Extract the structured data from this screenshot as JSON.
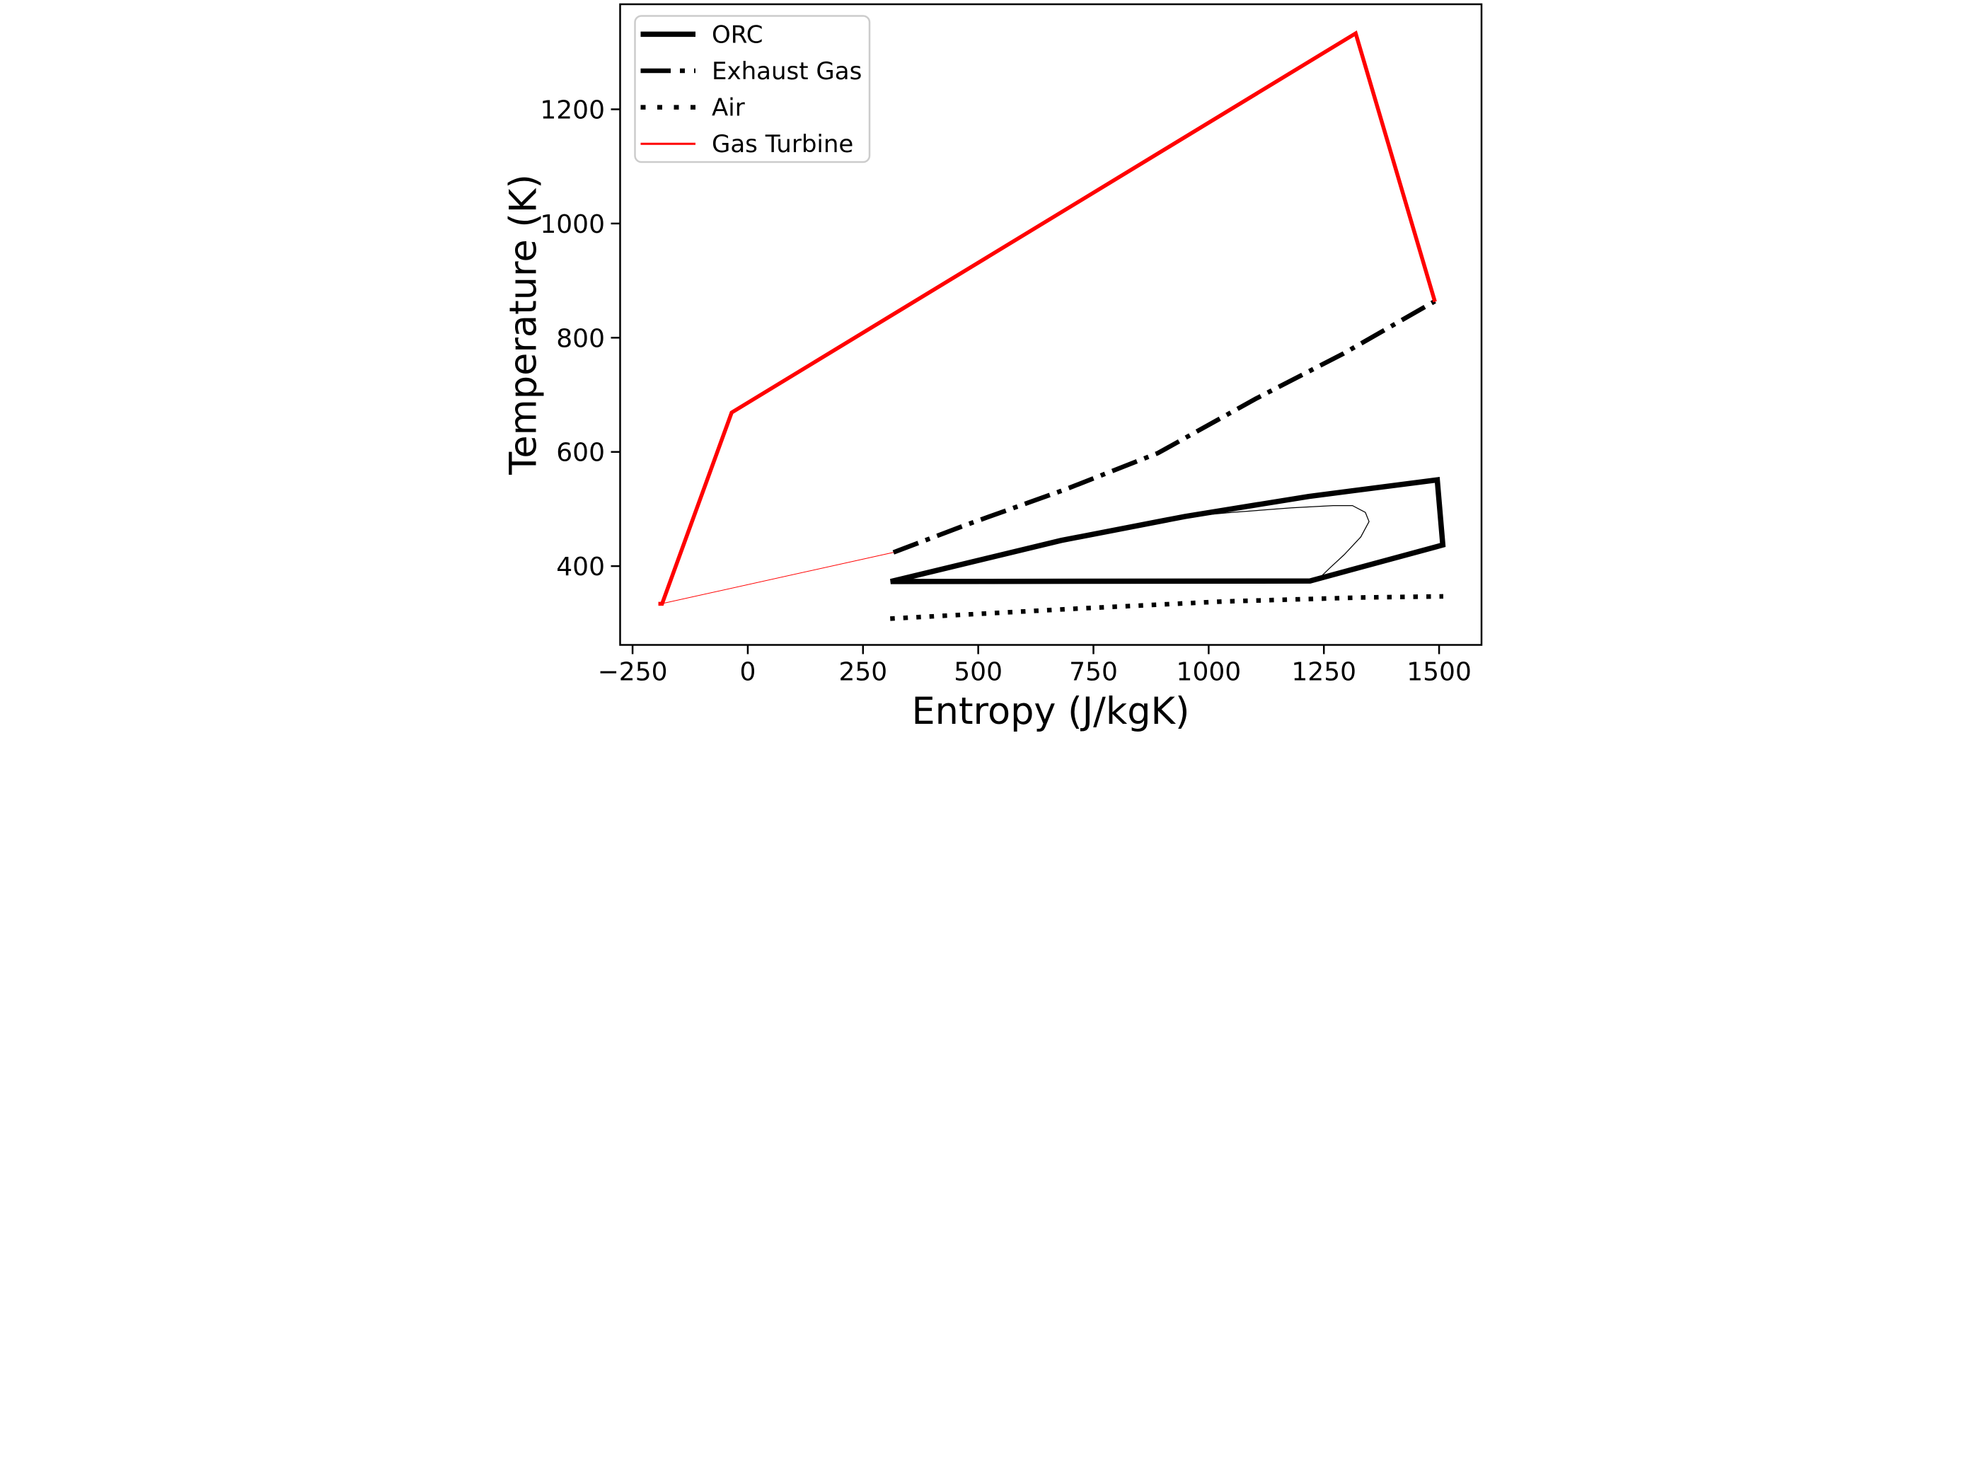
{
  "figure": {
    "background": "#ffffff",
    "line_color": "#000000",
    "accent_color": "#ff0000",
    "legend_border_color": "#cccccc"
  },
  "axes": {
    "xlabel": "Entropy (J/kgK)",
    "ylabel": "Temperature (K)",
    "xlim": [
      -277,
      1592
    ],
    "ylim": [
      262,
      1384
    ],
    "xtick_values": [
      -250,
      0,
      250,
      500,
      750,
      1000,
      1250,
      1500
    ],
    "xtick_labels": [
      "−250",
      "0",
      "250",
      "500",
      "750",
      "1000",
      "1250",
      "1500"
    ],
    "ytick_values": [
      400,
      600,
      800,
      1000,
      1200
    ],
    "ytick_labels": [
      "400",
      "600",
      "800",
      "1000",
      "1200"
    ]
  },
  "chart_data": {
    "type": "line",
    "title": "",
    "xlabel": "Entropy (J/kgK)",
    "ylabel": "Temperature (K)",
    "xlim": [
      -277,
      1592
    ],
    "ylim": [
      262,
      1384
    ],
    "grid": false,
    "legend": {
      "position": "upper left",
      "entries": [
        "ORC",
        "Exhaust Gas",
        "Air",
        "Gas Turbine"
      ]
    },
    "series": [
      {
        "key": "orc",
        "name": "ORC",
        "style": "solid",
        "color": "#000000",
        "width": 15,
        "sample_width": 15,
        "closed": true,
        "in_legend": true,
        "points": [
          [
            310,
            373
          ],
          [
            680,
            445
          ],
          [
            949,
            487
          ],
          [
            1217,
            522
          ],
          [
            1496,
            551
          ],
          [
            1508,
            437
          ],
          [
            1220,
            374
          ]
        ]
      },
      {
        "key": "orc-saturation-curve",
        "name": "ORC saturation curve",
        "style": "solid",
        "color": "#000000",
        "width": 2.5,
        "sample_width": 2.5,
        "closed": false,
        "in_legend": false,
        "points": [
          [
            900,
            483
          ],
          [
            1050,
            494
          ],
          [
            1180,
            502
          ],
          [
            1270,
            506
          ],
          [
            1312,
            506
          ],
          [
            1340,
            494
          ],
          [
            1348,
            478
          ],
          [
            1330,
            451
          ],
          [
            1294,
            420
          ],
          [
            1262,
            396
          ],
          [
            1244,
            382
          ]
        ]
      },
      {
        "key": "exhaust-gas",
        "name": "Exhaust Gas",
        "style": "dashdot",
        "color": "#000000",
        "width": 13,
        "sample_width": 13,
        "closed": false,
        "in_legend": true,
        "points": [
          [
            316,
            424
          ],
          [
            473,
            472
          ],
          [
            688,
            534
          ],
          [
            890,
            598
          ],
          [
            1102,
            693
          ],
          [
            1292,
            772
          ],
          [
            1491,
            864
          ]
        ]
      },
      {
        "key": "air",
        "name": "Air",
        "style": "dotted",
        "color": "#000000",
        "width": 13,
        "sample_width": 13,
        "closed": false,
        "in_legend": true,
        "points": [
          [
            309,
            308
          ],
          [
            700,
            325
          ],
          [
            1030,
            338
          ],
          [
            1330,
            345
          ],
          [
            1509,
            347
          ]
        ]
      },
      {
        "key": "gas-turbine",
        "name": "Gas Turbine",
        "style": "solid",
        "color": "#ff0000",
        "width": 11,
        "sample_width": 6,
        "closed": false,
        "in_legend": true,
        "points": [
          [
            -194,
            334
          ],
          [
            -186,
            334
          ],
          [
            -35,
            669
          ],
          [
            1319,
            1333
          ],
          [
            1491,
            863
          ]
        ]
      },
      {
        "key": "gas-turbine-return",
        "name": "Gas Turbine return line",
        "style": "solid",
        "color": "#ff0000",
        "width": 2,
        "sample_width": 2,
        "closed": false,
        "in_legend": false,
        "points": [
          [
            -188,
            334
          ],
          [
            316,
            424
          ]
        ]
      }
    ]
  }
}
